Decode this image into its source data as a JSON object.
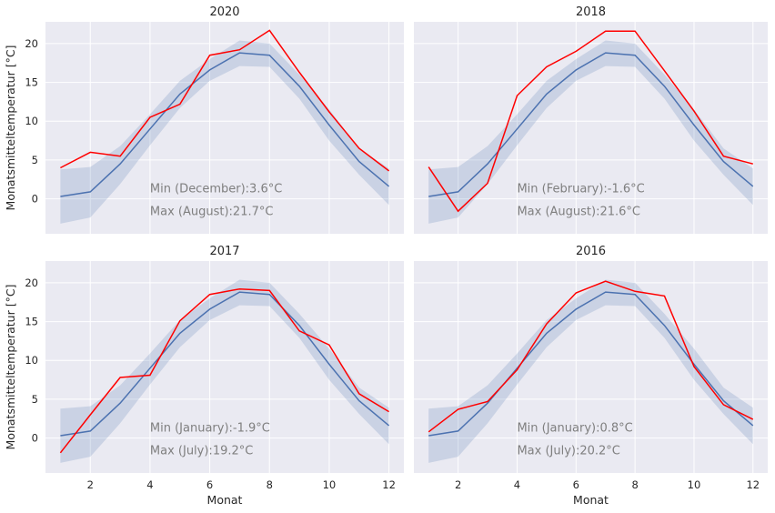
{
  "figure": {
    "ylabel": "Monatsmitteltemperatur [°C]",
    "xlabel": "Monat",
    "colors": {
      "background": "#eaeaf2",
      "grid": "#ffffff",
      "mean_line": "#4c72b0",
      "band": "#4c72b0",
      "year_line": "#ff0000",
      "annotation": "#7f7f7f"
    }
  },
  "chart_data": [
    {
      "type": "line",
      "title": "2020",
      "xlabel": "",
      "ylabel": "Monatsmitteltemperatur [°C]",
      "x": [
        1,
        2,
        3,
        4,
        5,
        6,
        7,
        8,
        9,
        10,
        11,
        12
      ],
      "xticks": [
        2,
        4,
        6,
        8,
        10,
        12
      ],
      "yticks": [
        0,
        5,
        10,
        15,
        20
      ],
      "xlim": [
        0.5,
        12.5
      ],
      "ylim": [
        -4.5,
        22.8
      ],
      "series": [
        {
          "values": [
            0.3,
            0.9,
            4.5,
            9.0,
            13.5,
            16.6,
            18.8,
            18.5,
            14.5,
            9.5,
            4.8,
            1.6
          ],
          "lower": [
            -3.2,
            -2.4,
            1.9,
            6.9,
            11.7,
            15.2,
            17.1,
            17.0,
            12.9,
            7.5,
            3.1,
            -0.8
          ],
          "upper": [
            3.8,
            4.1,
            6.8,
            10.9,
            15.2,
            18.0,
            20.4,
            20.0,
            16.0,
            11.5,
            6.5,
            3.9
          ]
        },
        {
          "values": [
            4.0,
            6.0,
            5.5,
            10.5,
            12.2,
            18.5,
            19.2,
            21.7,
            16.3,
            11.2,
            6.5,
            3.6
          ]
        }
      ],
      "annotations": [
        "Min (December):3.6°C",
        "Max (August):21.7°C"
      ]
    },
    {
      "type": "line",
      "title": "2018",
      "xlabel": "",
      "ylabel": "",
      "x": [
        1,
        2,
        3,
        4,
        5,
        6,
        7,
        8,
        9,
        10,
        11,
        12
      ],
      "xticks": [
        2,
        4,
        6,
        8,
        10,
        12
      ],
      "yticks": [
        0,
        5,
        10,
        15,
        20
      ],
      "xlim": [
        0.5,
        12.5
      ],
      "ylim": [
        -4.5,
        22.8
      ],
      "series": [
        {
          "values": [
            0.3,
            0.9,
            4.5,
            9.0,
            13.5,
            16.6,
            18.8,
            18.5,
            14.5,
            9.5,
            4.8,
            1.6
          ],
          "lower": [
            -3.2,
            -2.4,
            1.9,
            6.9,
            11.7,
            15.2,
            17.1,
            17.0,
            12.9,
            7.5,
            3.1,
            -0.8
          ],
          "upper": [
            3.8,
            4.1,
            6.8,
            10.9,
            15.2,
            18.0,
            20.4,
            20.0,
            16.0,
            11.5,
            6.5,
            3.9
          ]
        },
        {
          "values": [
            4.1,
            -1.6,
            2.0,
            13.3,
            17.0,
            19.0,
            21.6,
            21.6,
            16.5,
            11.3,
            5.5,
            4.5
          ]
        }
      ],
      "annotations": [
        "Min (February):-1.6°C",
        "Max (August):21.6°C"
      ]
    },
    {
      "type": "line",
      "title": "2017",
      "xlabel": "Monat",
      "ylabel": "Monatsmitteltemperatur [°C]",
      "x": [
        1,
        2,
        3,
        4,
        5,
        6,
        7,
        8,
        9,
        10,
        11,
        12
      ],
      "xticks": [
        2,
        4,
        6,
        8,
        10,
        12
      ],
      "yticks": [
        0,
        5,
        10,
        15,
        20
      ],
      "xlim": [
        0.5,
        12.5
      ],
      "ylim": [
        -4.5,
        22.8
      ],
      "series": [
        {
          "values": [
            0.3,
            0.9,
            4.5,
            9.0,
            13.5,
            16.6,
            18.8,
            18.5,
            14.5,
            9.5,
            4.8,
            1.6
          ],
          "lower": [
            -3.2,
            -2.4,
            1.9,
            6.9,
            11.7,
            15.2,
            17.1,
            17.0,
            12.9,
            7.5,
            3.1,
            -0.8
          ],
          "upper": [
            3.8,
            4.1,
            6.8,
            10.9,
            15.2,
            18.0,
            20.4,
            20.0,
            16.0,
            11.5,
            6.5,
            3.9
          ]
        },
        {
          "values": [
            -1.9,
            3.0,
            7.8,
            8.1,
            15.1,
            18.5,
            19.2,
            19.0,
            13.8,
            12.0,
            5.7,
            3.4
          ]
        }
      ],
      "annotations": [
        "Min (January):-1.9°C",
        "Max (July):19.2°C"
      ]
    },
    {
      "type": "line",
      "title": "2016",
      "xlabel": "Monat",
      "ylabel": "",
      "x": [
        1,
        2,
        3,
        4,
        5,
        6,
        7,
        8,
        9,
        10,
        11,
        12
      ],
      "xticks": [
        2,
        4,
        6,
        8,
        10,
        12
      ],
      "yticks": [
        0,
        5,
        10,
        15,
        20
      ],
      "xlim": [
        0.5,
        12.5
      ],
      "ylim": [
        -4.5,
        22.8
      ],
      "series": [
        {
          "values": [
            0.3,
            0.9,
            4.5,
            9.0,
            13.5,
            16.6,
            18.8,
            18.5,
            14.5,
            9.5,
            4.8,
            1.6
          ],
          "lower": [
            -3.2,
            -2.4,
            1.9,
            6.9,
            11.7,
            15.2,
            17.1,
            17.0,
            12.9,
            7.5,
            3.1,
            -0.8
          ],
          "upper": [
            3.8,
            4.1,
            6.8,
            10.9,
            15.2,
            18.0,
            20.4,
            20.0,
            16.0,
            11.5,
            6.5,
            3.9
          ]
        },
        {
          "values": [
            0.8,
            3.7,
            4.7,
            8.8,
            14.7,
            18.7,
            20.2,
            18.9,
            18.3,
            9.2,
            4.3,
            2.4
          ]
        }
      ],
      "annotations": [
        "Min (January):0.8°C",
        "Max (July):20.2°C"
      ]
    }
  ]
}
